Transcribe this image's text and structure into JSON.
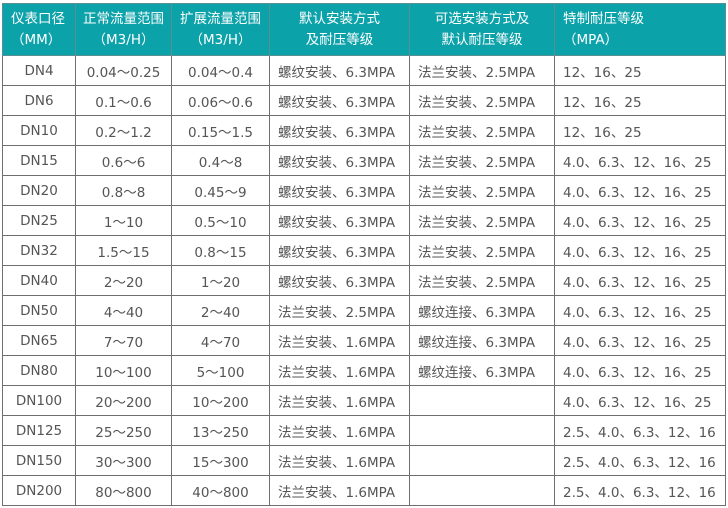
{
  "header_color": "#0ca2aa",
  "headers": [
    {
      "line1": "仪表口径",
      "line2": "（MM）"
    },
    {
      "line1": "正常流量范围",
      "line2": "（M3/H）"
    },
    {
      "line1": "扩展流量范围",
      "line2": "（M3/H）"
    },
    {
      "line1": "默认安装方式",
      "line2": "及耐压等级"
    },
    {
      "line1": "可选安装方式及",
      "line2": "默认耐压等级"
    },
    {
      "line1": "特制耐压等级",
      "line2": "（MPA）"
    }
  ],
  "rows": [
    [
      "DN4",
      "0.04～0.25",
      "0.04～0.4",
      "螺纹安装、6.3MPA",
      "法兰安装、2.5MPA",
      "12、16、25"
    ],
    [
      "DN6",
      "0.1～0.6",
      "0.06～0.6",
      "螺纹安装、6.3MPA",
      "法兰安装、2.5MPA",
      "12、16、25"
    ],
    [
      "DN10",
      "0.2～1.2",
      "0.15～1.5",
      "螺纹安装、6.3MPA",
      "法兰安装、2.5MPA",
      "12、16、25"
    ],
    [
      "DN15",
      "0.6～6",
      "0.4～8",
      "螺纹安装、6.3MPA",
      "法兰安装、2.5MPA",
      "4.0、6.3、12、16、25"
    ],
    [
      "DN20",
      "0.8～8",
      "0.45～9",
      "螺纹安装、6.3MPA",
      "法兰安装、2.5MPA",
      "4.0、6.3、12、16、25"
    ],
    [
      "DN25",
      "1～10",
      "0.5～10",
      "螺纹安装、6.3MPA",
      "法兰安装、2.5MPA",
      "4.0、6.3、12、16、25"
    ],
    [
      "DN32",
      "1.5～15",
      "0.8～15",
      "螺纹安装、6.3MPA",
      "法兰安装、2.5MPA",
      "4.0、6.3、12、16、25"
    ],
    [
      "DN40",
      "2～20",
      "1～20",
      "螺纹安装、6.3MPA",
      "法兰安装、2.5MPA",
      "4.0、6.3、12、16、25"
    ],
    [
      "DN50",
      "4～40",
      "2～40",
      "法兰安装、2.5MPA",
      "螺纹连接、6.3MPA",
      "4.0、6.3、12、16、25"
    ],
    [
      "DN65",
      "7～70",
      "4～70",
      "法兰安装、1.6MPA",
      "螺纹连接、6.3MPA",
      "4.0、6.3、12、16、25"
    ],
    [
      "DN80",
      "10～100",
      "5～100",
      "法兰安装、1.6MPA",
      "螺纹连接、6.3MPA",
      "4.0、6.3、12、16、25"
    ],
    [
      "DN100",
      "20～200",
      "10～200",
      "法兰安装、1.6MPA",
      "",
      "4.0、6.3、12、16、25"
    ],
    [
      "DN125",
      "25～250",
      "13～250",
      "法兰安装、1.6MPA",
      "",
      "2.5、4.0、6.3、12、16"
    ],
    [
      "DN150",
      "30～300",
      "15～300",
      "法兰安装、1.6MPA",
      "",
      "2.5、4.0、6.3、12、16"
    ],
    [
      "DN200",
      "80～800",
      "40～800",
      "法兰安装、1.6MPA",
      "",
      "2.5、4.0、6.3、12、16"
    ]
  ]
}
